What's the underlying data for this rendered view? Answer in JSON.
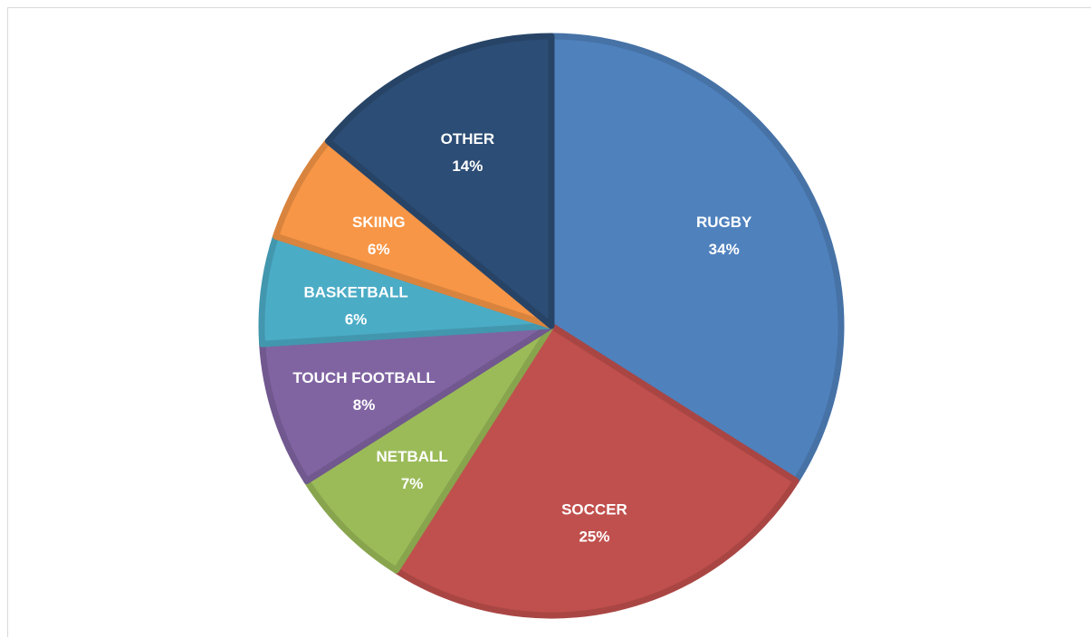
{
  "chart_data": {
    "type": "pie",
    "title": "",
    "legend": "none",
    "slices": [
      {
        "label": "RUGBY",
        "value": 34,
        "value_label": "34%",
        "color": "#4F81BD"
      },
      {
        "label": "SOCCER",
        "value": 25,
        "value_label": "25%",
        "color": "#C0504D"
      },
      {
        "label": "NETBALL",
        "value": 7,
        "value_label": "7%",
        "color": "#9BBB59"
      },
      {
        "label": "TOUCH FOOTBALL",
        "value": 8,
        "value_label": "8%",
        "color": "#8064A2"
      },
      {
        "label": "BASKETBALL",
        "value": 6,
        "value_label": "6%",
        "color": "#4BACC6"
      },
      {
        "label": "SKIING",
        "value": 6,
        "value_label": "6%",
        "color": "#F79646"
      },
      {
        "label": "OTHER",
        "value": 14,
        "value_label": "14%",
        "color": "#2C4D75"
      }
    ]
  }
}
